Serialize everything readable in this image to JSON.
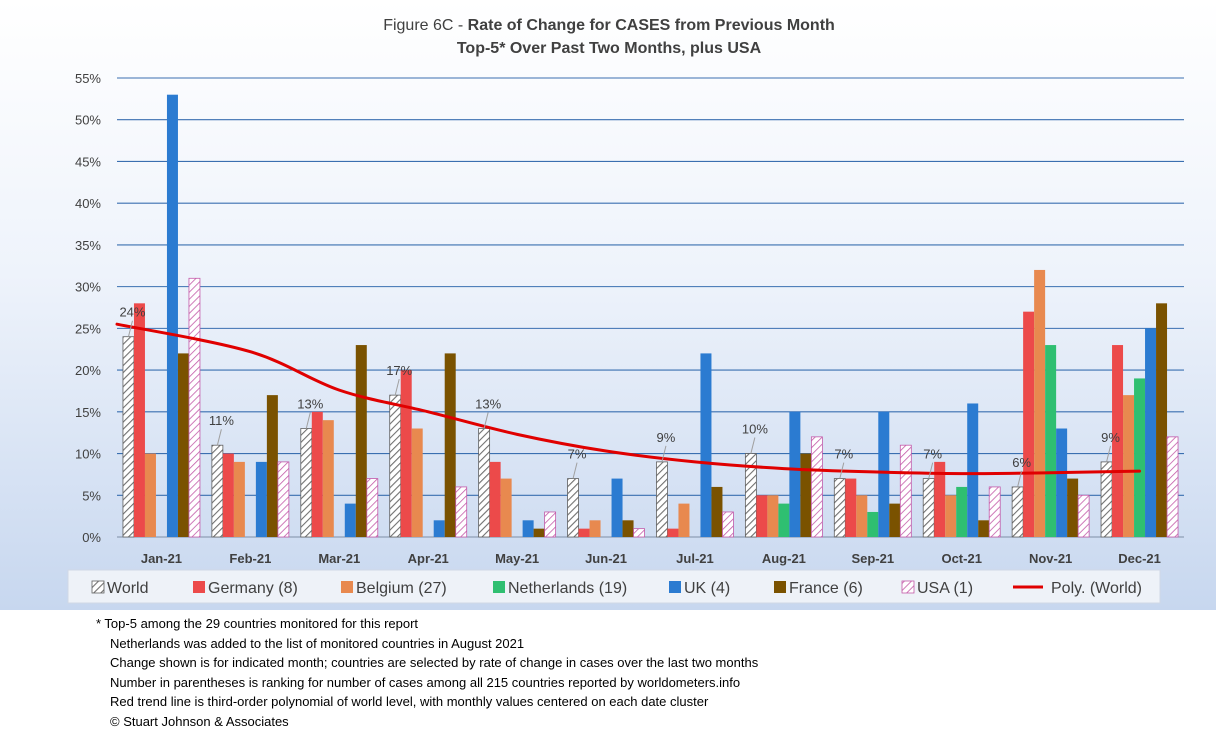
{
  "chart_data": {
    "type": "bar",
    "title_prefix": "Figure 6C - ",
    "title_bold": "Rate of Change for CASES from Previous Month",
    "subtitle": "Top-5* Over Past Two Months, plus USA",
    "categories": [
      "Jan-21",
      "Feb-21",
      "Mar-21",
      "Apr-21",
      "May-21",
      "Jun-21",
      "Jul-21",
      "Aug-21",
      "Sep-21",
      "Oct-21",
      "Nov-21",
      "Dec-21"
    ],
    "ylim": [
      0,
      55
    ],
    "yticks": [
      "0%",
      "5%",
      "10%",
      "15%",
      "20%",
      "25%",
      "30%",
      "35%",
      "40%",
      "45%",
      "50%",
      "55%"
    ],
    "ytick_values": [
      0,
      5,
      10,
      15,
      20,
      25,
      30,
      35,
      40,
      45,
      50,
      55
    ],
    "grid": true,
    "legend_position": "bottom",
    "series": [
      {
        "name": "World",
        "color": "#bfbfbf",
        "pattern": "hatch-dark",
        "values": [
          24,
          11,
          13,
          17,
          13,
          7,
          9,
          10,
          7,
          7,
          6,
          9
        ]
      },
      {
        "name": "Germany (8)",
        "color": "#ec4a4a",
        "values": [
          28,
          10,
          15,
          20,
          9,
          1,
          1,
          5,
          7,
          9,
          27,
          23
        ]
      },
      {
        "name": "Belgium (27)",
        "color": "#e8894f",
        "values": [
          10,
          9,
          14,
          13,
          7,
          2,
          4,
          5,
          5,
          5,
          32,
          17
        ]
      },
      {
        "name": "Netherlands (19)",
        "color": "#2fbf71",
        "values": [
          null,
          null,
          null,
          null,
          null,
          null,
          null,
          4,
          3,
          6,
          23,
          19
        ]
      },
      {
        "name": "UK (4)",
        "color": "#2b7bd1",
        "values": [
          53,
          9,
          4,
          2,
          2,
          7,
          22,
          15,
          15,
          16,
          13,
          25
        ]
      },
      {
        "name": "France (6)",
        "color": "#7a5200",
        "values": [
          22,
          17,
          23,
          22,
          1,
          2,
          6,
          10,
          4,
          2,
          7,
          28
        ]
      },
      {
        "name": "USA (1)",
        "color": "#c35aa9",
        "pattern": "hatch-pink",
        "values": [
          31,
          9,
          7,
          6,
          3,
          1,
          3,
          12,
          11,
          6,
          5,
          12
        ]
      }
    ],
    "data_labels": [
      "24%",
      "11%",
      "13%",
      "17%",
      "13%",
      "7%",
      "9%",
      "10%",
      "7%",
      "7%",
      "6%",
      "9%"
    ],
    "trendline": {
      "name": "Poly. (World)",
      "color": "#e00000",
      "type": "third-order polynomial",
      "values": [
        25.5,
        22.2,
        17.6,
        15,
        12.3,
        10.3,
        9,
        8.2,
        7.8,
        7.6,
        7.7,
        7.9
      ]
    }
  },
  "footnotes": [
    "* Top-5 among the 29 countries monitored for this report",
    "Netherlands was added to the list of monitored countries in August 2021",
    "Change shown is for indicated month; countries are selected by rate of change in cases over the last two months",
    "Number in parentheses is ranking for number of cases among all 215 countries reported by worldometers.info",
    "Red trend line is third-order polynomial of world level, with monthly values centered on each date cluster",
    "© Stuart Johnson & Associates"
  ]
}
